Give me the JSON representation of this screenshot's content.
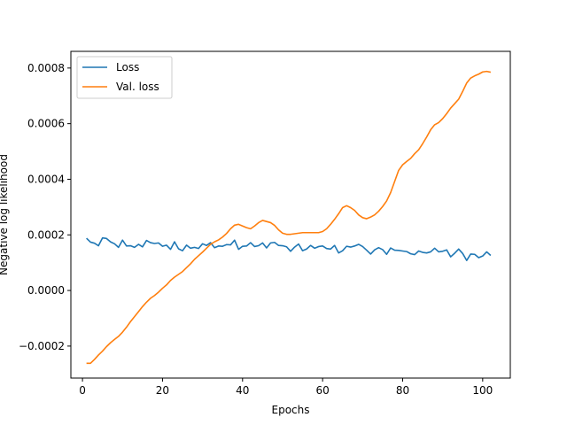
{
  "chart_data": {
    "type": "line",
    "title": "",
    "xlabel": "Epochs",
    "ylabel": "Negative log likelihood",
    "xlim": [
      -2.9,
      106.9
    ],
    "ylim": [
      -0.000315,
      0.00086
    ],
    "xticks": [
      0,
      20,
      40,
      60,
      80,
      100
    ],
    "xtick_labels": [
      "0",
      "20",
      "40",
      "60",
      "80",
      "100"
    ],
    "yticks": [
      -0.0002,
      0.0,
      0.0002,
      0.0004,
      0.0006,
      0.0008
    ],
    "ytick_labels": [
      "−0.0002",
      "0.0000",
      "0.0002",
      "0.0004",
      "0.0006",
      "0.0008"
    ],
    "grid": false,
    "legend": "top-left",
    "colors": {
      "loss": "#1f77b4",
      "val_loss": "#ff7f0e"
    },
    "x": [
      1,
      2,
      3,
      4,
      5,
      6,
      7,
      8,
      9,
      10,
      11,
      12,
      13,
      14,
      15,
      16,
      17,
      18,
      19,
      20,
      21,
      22,
      23,
      24,
      25,
      26,
      27,
      28,
      29,
      30,
      31,
      32,
      33,
      34,
      35,
      36,
      37,
      38,
      39,
      40,
      41,
      42,
      43,
      44,
      45,
      46,
      47,
      48,
      49,
      50,
      51,
      52,
      53,
      54,
      55,
      56,
      57,
      58,
      59,
      60,
      61,
      62,
      63,
      64,
      65,
      66,
      67,
      68,
      69,
      70,
      71,
      72,
      73,
      74,
      75,
      76,
      77,
      78,
      79,
      80,
      81,
      82,
      83,
      84,
      85,
      86,
      87,
      88,
      89,
      90,
      91,
      92,
      93,
      94,
      95,
      96,
      97,
      98,
      99,
      100,
      101,
      102
    ],
    "series": [
      {
        "name": "Loss",
        "values": [
          0.000188,
          0.000174,
          0.00017,
          0.000161,
          0.000189,
          0.000187,
          0.000175,
          0.000168,
          0.000155,
          0.000181,
          0.00016,
          0.000161,
          0.000155,
          0.000166,
          0.000157,
          0.00018,
          0.000172,
          0.000169,
          0.000171,
          0.000159,
          0.000163,
          0.000148,
          0.000175,
          0.00015,
          0.000143,
          0.000163,
          0.000152,
          0.000155,
          0.000151,
          0.000168,
          0.000162,
          0.000172,
          0.000154,
          0.00016,
          0.000159,
          0.000165,
          0.000164,
          0.000181,
          0.000148,
          0.000159,
          0.00016,
          0.000172,
          0.000158,
          0.000161,
          0.000171,
          0.000153,
          0.000171,
          0.000173,
          0.000162,
          0.000161,
          0.000157,
          0.000141,
          0.000156,
          0.000167,
          0.000143,
          0.000149,
          0.000162,
          0.000152,
          0.000158,
          0.00016,
          0.000151,
          0.000149,
          0.000162,
          0.000135,
          0.000143,
          0.000159,
          0.000156,
          0.00016,
          0.000166,
          0.000158,
          0.000145,
          0.000131,
          0.000146,
          0.000154,
          0.000147,
          0.00013,
          0.000153,
          0.000145,
          0.000144,
          0.000142,
          0.00014,
          0.000132,
          0.000129,
          0.000142,
          0.000137,
          0.000135,
          0.000139,
          0.000152,
          0.000139,
          0.000141,
          0.000146,
          0.000121,
          0.000134,
          0.000149,
          0.000133,
          0.000108,
          0.000131,
          0.00013,
          0.000118,
          0.000124,
          0.000139,
          0.000126
        ]
      },
      {
        "name": "Val. loss",
        "values": [
          -0.000262,
          -0.000262,
          -0.000248,
          -0.000232,
          -0.000218,
          -0.000202,
          -0.000188,
          -0.000176,
          -0.000165,
          -0.00015,
          -0.000132,
          -0.000112,
          -9.4e-05,
          -7.6e-05,
          -5.8e-05,
          -4.2e-05,
          -2.8e-05,
          -1.8e-05,
          -6e-06,
          8e-06,
          2e-05,
          3.6e-05,
          4.8e-05,
          5.8e-05,
          6.8e-05,
          8.2e-05,
          9.6e-05,
          0.000112,
          0.000125,
          0.000138,
          0.000152,
          0.000166,
          0.000175,
          0.000182,
          0.000192,
          0.000205,
          0.000222,
          0.000235,
          0.000238,
          0.000232,
          0.000226,
          0.000222,
          0.000232,
          0.000244,
          0.000252,
          0.000248,
          0.000244,
          0.000234,
          0.000218,
          0.000206,
          0.000202,
          0.000202,
          0.000204,
          0.000206,
          0.000208,
          0.000208,
          0.000208,
          0.000208,
          0.000208,
          0.000212,
          0.000222,
          0.000238,
          0.000256,
          0.000276,
          0.000298,
          0.000305,
          0.000298,
          0.000288,
          0.000272,
          0.000262,
          0.000258,
          0.000264,
          0.000272,
          0.000285,
          0.000302,
          0.000322,
          0.000352,
          0.000392,
          0.000432,
          0.000452,
          0.000464,
          0.000475,
          0.000492,
          0.000506,
          0.000528,
          0.000552,
          0.000578,
          0.000596,
          0.000604,
          0.000618,
          0.000636,
          0.000656,
          0.000672,
          0.000688,
          0.000716,
          0.000746,
          0.000764,
          0.000772,
          0.000778,
          0.000786,
          0.000788,
          0.000785
        ]
      }
    ]
  }
}
